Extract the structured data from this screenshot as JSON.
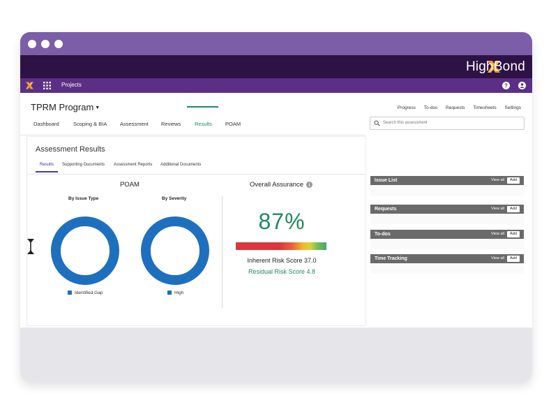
{
  "brand": {
    "name": "HighBond"
  },
  "nav": {
    "projects_label": "Projects"
  },
  "program": {
    "title": "TPRM Program"
  },
  "top_links": [
    "Progress",
    "To-dos",
    "Requests",
    "Timesheets",
    "Settings"
  ],
  "tabs": [
    "Dashboard",
    "Scoping & BIA",
    "Assessment",
    "Reviews",
    "Results",
    "POAM"
  ],
  "active_tab": "Results",
  "search": {
    "placeholder": "Search this assessment"
  },
  "results": {
    "title": "Assessment Results",
    "subtabs": [
      "Results",
      "Supporting Documents",
      "Assessment Reports",
      "Additional Documents"
    ],
    "active_subtab": "Results"
  },
  "poam": {
    "title": "POAM",
    "by_issue_type": {
      "caption": "By Issue Type",
      "legend": "Identified Gap"
    },
    "by_severity": {
      "caption": "By Severity",
      "legend": "High"
    }
  },
  "assurance": {
    "title": "Overall Assurance",
    "percent": "87%",
    "inherent": "Inherent Risk Score 37.0",
    "residual": "Residual Risk Score 4.8",
    "gauge_fraction": 0.87
  },
  "sidebar": [
    {
      "title": "Issue List",
      "view_all": "View all",
      "add": "Add"
    },
    {
      "title": "Requests",
      "view_all": "View all",
      "add": "Add"
    },
    {
      "title": "To-dos",
      "view_all": "View all",
      "add": "Add"
    },
    {
      "title": "Time Tracking",
      "view_all": "View all",
      "add": "Add"
    }
  ],
  "colors": {
    "titlebar": "#7b5ea7",
    "brandbar": "#2d1245",
    "navbar": "#5b2f86",
    "accent_green": "#1d8a5e",
    "donut_blue": "#1f6fbf",
    "logo_orange": "#f39b1c"
  }
}
